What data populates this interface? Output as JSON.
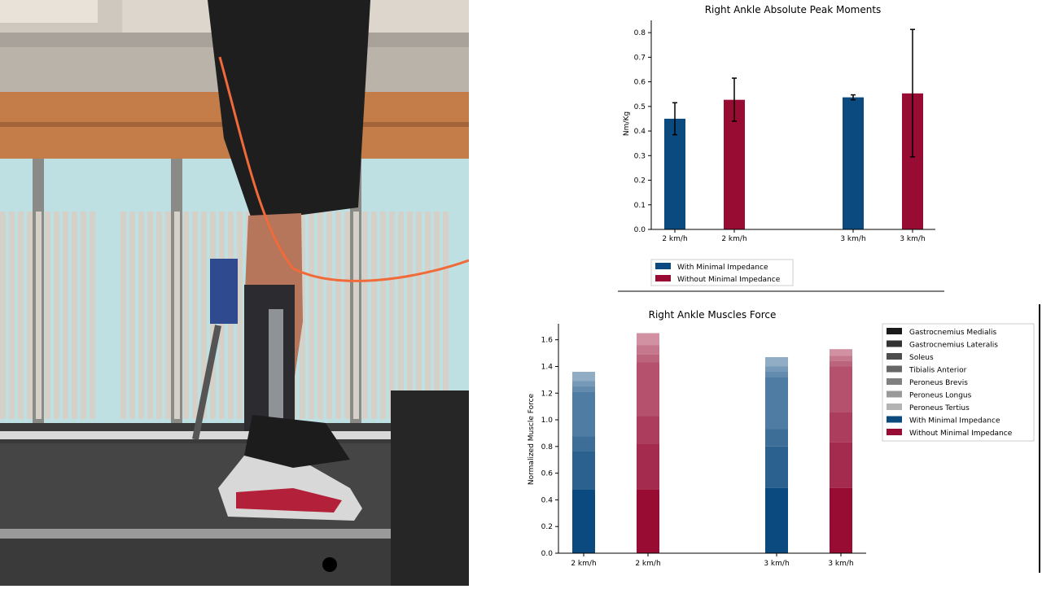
{
  "photo": {
    "description_icon": "photo-icon",
    "colors": {
      "wall": "#c07a4a",
      "window": "#b8dde0",
      "radiator": "#d9d4cc",
      "treadmill": "#2d2d2d"
    }
  },
  "colors": {
    "with": "#0b4a7e",
    "without": "#980c34",
    "errorbar": "#000000"
  },
  "chart_data": [
    {
      "type": "bar",
      "title": "Right Ankle Absolute Peak Moments",
      "xlabel": "",
      "ylabel": "Nm/Kg",
      "ylim": [
        0,
        0.85
      ],
      "yticks": [
        0.0,
        0.1,
        0.2,
        0.3,
        0.4,
        0.5,
        0.6,
        0.7,
        0.8
      ],
      "ytick_labels": [
        "0.0",
        "0.1",
        "0.2",
        "0.3",
        "0.4",
        "0.5",
        "0.6",
        "0.7",
        "0.8"
      ],
      "categories": [
        "2 km/h",
        "2 km/h",
        "3 km/h",
        "3 km/h"
      ],
      "bars": [
        {
          "category_index": 0,
          "series": "With Minimal Impedance",
          "value": 0.45,
          "err_low": 0.385,
          "err_high": 0.515
        },
        {
          "category_index": 1,
          "series": "Without Minimal Impedance",
          "value": 0.527,
          "err_low": 0.44,
          "err_high": 0.615
        },
        {
          "category_index": 2,
          "series": "With Minimal Impedance",
          "value": 0.537,
          "err_low": 0.527,
          "err_high": 0.547
        },
        {
          "category_index": 3,
          "series": "Without Minimal Impedance",
          "value": 0.553,
          "err_low": 0.295,
          "err_high": 0.813
        }
      ],
      "legend": {
        "placement": "bottom",
        "entries": [
          {
            "label": "With Minimal Impedance",
            "color": "#0b4a7e"
          },
          {
            "label": "Without Minimal Impedance",
            "color": "#980c34"
          }
        ]
      },
      "grid": false
    },
    {
      "type": "bar",
      "stacked": true,
      "title": "Right Ankle Muscles Force",
      "xlabel": "",
      "ylabel": "Normalized Muscle Force",
      "ylim": [
        0,
        1.72
      ],
      "yticks": [
        0.0,
        0.2,
        0.4,
        0.6,
        0.8,
        1.0,
        1.2,
        1.4,
        1.6
      ],
      "ytick_labels": [
        "0.0",
        "0.2",
        "0.4",
        "0.6",
        "0.8",
        "1.0",
        "1.2",
        "1.4",
        "1.6"
      ],
      "categories": [
        "2 km/h",
        "2 km/h",
        "3 km/h",
        "3 km/h"
      ],
      "segment_names": [
        "Gastrocnemius Medialis",
        "Gastrocnemius Lateralis",
        "Soleus",
        "Tibialis Anterior",
        "Peroneus Brevis",
        "Peroneus Longus",
        "Peroneus Tertius"
      ],
      "stacks": [
        {
          "category_index": 0,
          "series": "With Minimal Impedance",
          "values": [
            0.48,
            0.285,
            0.11,
            0.335,
            0.04,
            0.04,
            0.07
          ]
        },
        {
          "category_index": 1,
          "series": "Without Minimal Impedance",
          "values": [
            0.48,
            0.34,
            0.21,
            0.4,
            0.06,
            0.07,
            0.09
          ]
        },
        {
          "category_index": 2,
          "series": "With Minimal Impedance",
          "values": [
            0.49,
            0.31,
            0.13,
            0.39,
            0.04,
            0.04,
            0.07
          ]
        },
        {
          "category_index": 3,
          "series": "Without Minimal Impedance",
          "values": [
            0.49,
            0.34,
            0.23,
            0.34,
            0.04,
            0.04,
            0.05
          ]
        }
      ],
      "segment_opacity": [
        1.0,
        0.87,
        0.8,
        0.72,
        0.64,
        0.56,
        0.45
      ],
      "legend": {
        "placement": "right",
        "entries": [
          {
            "label": "Gastrocnemius Medialis",
            "color": "#1a1a1a"
          },
          {
            "label": "Gastrocnemius Lateralis",
            "color": "#333333"
          },
          {
            "label": "Soleus",
            "color": "#4d4d4d"
          },
          {
            "label": "Tibialis Anterior",
            "color": "#666666"
          },
          {
            "label": "Peroneus Brevis",
            "color": "#808080"
          },
          {
            "label": "Peroneus Longus",
            "color": "#999999"
          },
          {
            "label": "Peroneus Tertius",
            "color": "#b3b3b3"
          },
          {
            "label": "With Minimal Impedance",
            "color": "#0b4a7e"
          },
          {
            "label": "Without Minimal Impedance",
            "color": "#980c34"
          }
        ]
      },
      "grid": false
    }
  ]
}
